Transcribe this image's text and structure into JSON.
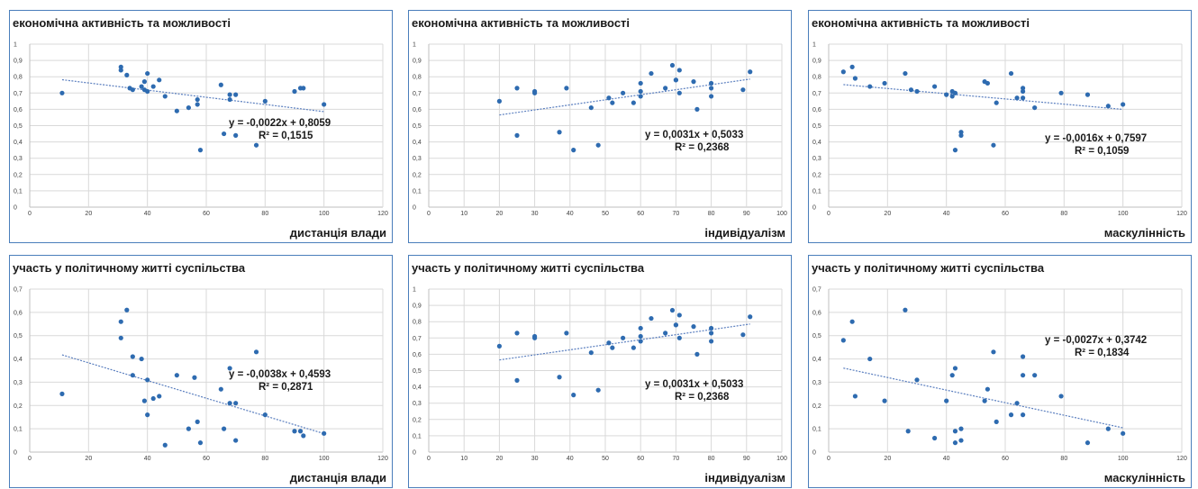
{
  "colors": {
    "point": "#2e6bb0",
    "trendline": "#5b7fbf",
    "border": "#4a7ebb",
    "grid": "#d9d9d9"
  },
  "chart_data": [
    {
      "type": "scatter",
      "title": "економічна активність та можливості",
      "xlabel": "дистанція влади",
      "xlim": [
        0,
        120
      ],
      "xticks": [
        0,
        20,
        40,
        60,
        80,
        100,
        120
      ],
      "ylim": [
        0,
        1
      ],
      "yticks": [
        "0",
        "0,1",
        "0,2",
        "0,3",
        "0,4",
        "0,5",
        "0,6",
        "0,7",
        "0,8",
        "0,9",
        "1"
      ],
      "grid": "horizontal and vertical",
      "trendline": "linear, dotted",
      "equation": "y = -0,0022x + 0,8059",
      "r2": "R² = 0,1515",
      "trend_coef": [
        -0.0022,
        0.8059
      ],
      "points": [
        [
          11,
          0.7
        ],
        [
          31,
          0.86
        ],
        [
          31,
          0.84
        ],
        [
          33,
          0.81
        ],
        [
          34,
          0.73
        ],
        [
          35,
          0.72
        ],
        [
          38,
          0.74
        ],
        [
          39,
          0.72
        ],
        [
          39,
          0.77
        ],
        [
          40,
          0.71
        ],
        [
          40,
          0.82
        ],
        [
          42,
          0.74
        ],
        [
          44,
          0.78
        ],
        [
          46,
          0.68
        ],
        [
          50,
          0.59
        ],
        [
          54,
          0.61
        ],
        [
          57,
          0.63
        ],
        [
          57,
          0.66
        ],
        [
          58,
          0.35
        ],
        [
          65,
          0.75
        ],
        [
          66,
          0.45
        ],
        [
          68,
          0.69
        ],
        [
          68,
          0.66
        ],
        [
          70,
          0.69
        ],
        [
          70,
          0.44
        ],
        [
          77,
          0.38
        ],
        [
          80,
          0.65
        ],
        [
          90,
          0.71
        ],
        [
          92,
          0.73
        ],
        [
          93,
          0.73
        ],
        [
          100,
          0.63
        ]
      ]
    },
    {
      "type": "scatter",
      "title": "економічна активність та можливості",
      "xlabel": "індивідуалізм",
      "xlim": [
        0,
        100
      ],
      "xticks": [
        0,
        10,
        20,
        30,
        40,
        50,
        60,
        70,
        80,
        90,
        100
      ],
      "ylim": [
        0,
        1
      ],
      "yticks": [
        "0",
        "0,1",
        "0,2",
        "0,3",
        "0,4",
        "0,5",
        "0,6",
        "0,7",
        "0,8",
        "0,9",
        "1"
      ],
      "grid": "horizontal and vertical",
      "trendline": "linear, dotted",
      "equation": "y = 0,0031x + 0,5033",
      "r2": "R² = 0,2368",
      "trend_coef": [
        0.0031,
        0.5033
      ],
      "points": [
        [
          20,
          0.65
        ],
        [
          25,
          0.73
        ],
        [
          25,
          0.44
        ],
        [
          30,
          0.71
        ],
        [
          30,
          0.7
        ],
        [
          37,
          0.46
        ],
        [
          39,
          0.73
        ],
        [
          41,
          0.35
        ],
        [
          46,
          0.61
        ],
        [
          48,
          0.38
        ],
        [
          51,
          0.67
        ],
        [
          52,
          0.64
        ],
        [
          55,
          0.7
        ],
        [
          58,
          0.64
        ],
        [
          60,
          0.76
        ],
        [
          60,
          0.71
        ],
        [
          60,
          0.68
        ],
        [
          63,
          0.82
        ],
        [
          67,
          0.73
        ],
        [
          69,
          0.87
        ],
        [
          70,
          0.78
        ],
        [
          70,
          0.78
        ],
        [
          71,
          0.84
        ],
        [
          71,
          0.7
        ],
        [
          75,
          0.77
        ],
        [
          76,
          0.6
        ],
        [
          80,
          0.76
        ],
        [
          80,
          0.73
        ],
        [
          80,
          0.68
        ],
        [
          89,
          0.72
        ],
        [
          91,
          0.83
        ]
      ]
    },
    {
      "type": "scatter",
      "title": "економічна активність та можливості",
      "xlabel": "маскулінність",
      "xlim": [
        0,
        120
      ],
      "xticks": [
        0,
        20,
        40,
        60,
        80,
        100,
        120
      ],
      "ylim": [
        0,
        1
      ],
      "yticks": [
        "0",
        "0,1",
        "0,2",
        "0,3",
        "0,4",
        "0,5",
        "0,6",
        "0,7",
        "0,8",
        "0,9",
        "1"
      ],
      "grid": "horizontal and vertical",
      "trendline": "linear, dotted",
      "equation": "y = -0,0016x + 0,7597",
      "r2": "R² = 0,1059",
      "trend_coef": [
        -0.0016,
        0.7597
      ],
      "points": [
        [
          5,
          0.83
        ],
        [
          8,
          0.86
        ],
        [
          9,
          0.79
        ],
        [
          14,
          0.74
        ],
        [
          19,
          0.76
        ],
        [
          26,
          0.82
        ],
        [
          28,
          0.72
        ],
        [
          30,
          0.71
        ],
        [
          36,
          0.74
        ],
        [
          40,
          0.69
        ],
        [
          42,
          0.71
        ],
        [
          42,
          0.68
        ],
        [
          43,
          0.7
        ],
        [
          43,
          0.35
        ],
        [
          45,
          0.44
        ],
        [
          45,
          0.46
        ],
        [
          53,
          0.77
        ],
        [
          54,
          0.76
        ],
        [
          56,
          0.38
        ],
        [
          57,
          0.64
        ],
        [
          62,
          0.82
        ],
        [
          64,
          0.67
        ],
        [
          66,
          0.73
        ],
        [
          66,
          0.71
        ],
        [
          66,
          0.67
        ],
        [
          70,
          0.61
        ],
        [
          79,
          0.7
        ],
        [
          88,
          0.69
        ],
        [
          95,
          0.62
        ],
        [
          100,
          0.63
        ]
      ]
    },
    {
      "type": "scatter",
      "title": "участь у політичному житті суспільства",
      "xlabel": "дистанція влади",
      "xlim": [
        0,
        120
      ],
      "xticks": [
        0,
        20,
        40,
        60,
        80,
        100,
        120
      ],
      "ylim": [
        0,
        0.7
      ],
      "yticks": [
        "0",
        "0,1",
        "0,2",
        "0,3",
        "0,4",
        "0,5",
        "0,6",
        "0,7"
      ],
      "grid": "horizontal and vertical",
      "trendline": "linear, dotted",
      "equation": "y = -0,0038x + 0,4593",
      "r2": "R² = 0,2871",
      "trend_coef": [
        -0.0038,
        0.4593
      ],
      "points": [
        [
          11,
          0.25
        ],
        [
          31,
          0.56
        ],
        [
          31,
          0.49
        ],
        [
          33,
          0.61
        ],
        [
          35,
          0.41
        ],
        [
          35,
          0.33
        ],
        [
          38,
          0.4
        ],
        [
          39,
          0.22
        ],
        [
          40,
          0.31
        ],
        [
          40,
          0.16
        ],
        [
          42,
          0.23
        ],
        [
          44,
          0.24
        ],
        [
          46,
          0.03
        ],
        [
          50,
          0.33
        ],
        [
          54,
          0.1
        ],
        [
          56,
          0.32
        ],
        [
          57,
          0.13
        ],
        [
          58,
          0.04
        ],
        [
          65,
          0.27
        ],
        [
          66,
          0.1
        ],
        [
          68,
          0.36
        ],
        [
          68,
          0.21
        ],
        [
          70,
          0.21
        ],
        [
          70,
          0.05
        ],
        [
          77,
          0.43
        ],
        [
          80,
          0.16
        ],
        [
          90,
          0.09
        ],
        [
          92,
          0.09
        ],
        [
          93,
          0.07
        ],
        [
          100,
          0.08
        ]
      ]
    },
    {
      "type": "scatter",
      "title": "участь у політичному житті суспільства",
      "xlabel": "індивідуалізм",
      "xlim": [
        0,
        100
      ],
      "xticks": [
        0,
        10,
        20,
        30,
        40,
        50,
        60,
        70,
        80,
        90,
        100
      ],
      "ylim": [
        0,
        1
      ],
      "yticks": [
        "0",
        "0,1",
        "0,2",
        "0,3",
        "0,4",
        "0,5",
        "0,6",
        "0,7",
        "0,8",
        "0,9",
        "1"
      ],
      "grid": "horizontal and vertical",
      "trendline": "linear, dotted",
      "equation": "y = 0,0031x + 0,5033",
      "r2": "R² = 0,2368",
      "trend_coef": [
        0.0031,
        0.5033
      ],
      "points": [
        [
          20,
          0.65
        ],
        [
          25,
          0.73
        ],
        [
          25,
          0.44
        ],
        [
          30,
          0.71
        ],
        [
          30,
          0.7
        ],
        [
          37,
          0.46
        ],
        [
          39,
          0.73
        ],
        [
          41,
          0.35
        ],
        [
          46,
          0.61
        ],
        [
          48,
          0.38
        ],
        [
          51,
          0.67
        ],
        [
          52,
          0.64
        ],
        [
          55,
          0.7
        ],
        [
          58,
          0.64
        ],
        [
          60,
          0.76
        ],
        [
          60,
          0.71
        ],
        [
          60,
          0.68
        ],
        [
          63,
          0.82
        ],
        [
          67,
          0.73
        ],
        [
          69,
          0.87
        ],
        [
          70,
          0.78
        ],
        [
          70,
          0.78
        ],
        [
          71,
          0.84
        ],
        [
          71,
          0.7
        ],
        [
          75,
          0.77
        ],
        [
          76,
          0.6
        ],
        [
          80,
          0.76
        ],
        [
          80,
          0.73
        ],
        [
          80,
          0.68
        ],
        [
          89,
          0.72
        ],
        [
          91,
          0.83
        ]
      ]
    },
    {
      "type": "scatter",
      "title": "участь у політичному житті суспільства",
      "xlabel": "маскулінність",
      "xlim": [
        0,
        120
      ],
      "xticks": [
        0,
        20,
        40,
        60,
        80,
        100,
        120
      ],
      "ylim": [
        0,
        0.7
      ],
      "yticks": [
        "0",
        "0,1",
        "0,2",
        "0,3",
        "0,4",
        "0,5",
        "0,6",
        "0,7"
      ],
      "grid": "horizontal and vertical",
      "trendline": "linear, dotted",
      "equation": "y = -0,0027x + 0,3742",
      "r2": "R² = 0,1834",
      "trend_coef": [
        -0.0027,
        0.3742
      ],
      "points": [
        [
          5,
          0.48
        ],
        [
          8,
          0.56
        ],
        [
          9,
          0.24
        ],
        [
          14,
          0.4
        ],
        [
          19,
          0.22
        ],
        [
          26,
          0.61
        ],
        [
          27,
          0.09
        ],
        [
          30,
          0.31
        ],
        [
          36,
          0.06
        ],
        [
          40,
          0.22
        ],
        [
          42,
          0.33
        ],
        [
          43,
          0.36
        ],
        [
          43,
          0.09
        ],
        [
          43,
          0.04
        ],
        [
          45,
          0.05
        ],
        [
          45,
          0.1
        ],
        [
          53,
          0.22
        ],
        [
          54,
          0.27
        ],
        [
          56,
          0.43
        ],
        [
          57,
          0.13
        ],
        [
          62,
          0.16
        ],
        [
          64,
          0.21
        ],
        [
          66,
          0.41
        ],
        [
          66,
          0.33
        ],
        [
          66,
          0.16
        ],
        [
          70,
          0.33
        ],
        [
          79,
          0.24
        ],
        [
          88,
          0.04
        ],
        [
          95,
          0.1
        ],
        [
          100,
          0.08
        ]
      ]
    }
  ]
}
